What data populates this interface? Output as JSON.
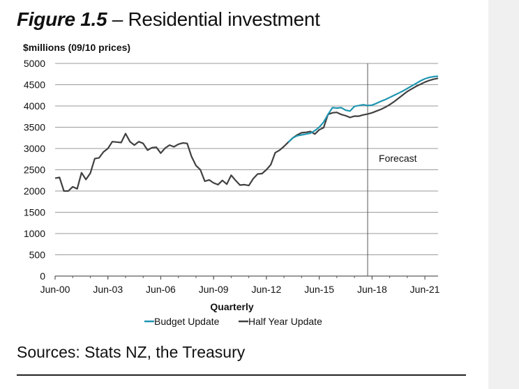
{
  "title": {
    "number": "Figure 1.5",
    "separator": " – ",
    "text": "Residential investment"
  },
  "sources": "Sources: Stats NZ, the Treasury",
  "chart_data": {
    "type": "line",
    "ylabel": "$millions (09/10 prices)",
    "xlabel": "Quarterly",
    "ylim": [
      0,
      5000
    ],
    "yticks": [
      "5000",
      "4500",
      "4000",
      "3500",
      "3000",
      "2500",
      "2000",
      "1500",
      "1000",
      "500",
      "0"
    ],
    "xlim": [
      2000.5,
      2022.25
    ],
    "xticks": [
      {
        "label": "Jun-00",
        "x": 2000.5
      },
      {
        "label": "Jun-03",
        "x": 2003.5
      },
      {
        "label": "Jun-06",
        "x": 2006.5
      },
      {
        "label": "Jun-09",
        "x": 2009.5
      },
      {
        "label": "Jun-12",
        "x": 2012.5
      },
      {
        "label": "Jun-15",
        "x": 2015.5
      },
      {
        "label": "Jun-18",
        "x": 2018.5
      },
      {
        "label": "Jun-21",
        "x": 2021.5
      }
    ],
    "grid": true,
    "legend_position": "bottom",
    "forecast": {
      "label": "Forecast",
      "x": 2018.25
    },
    "series": [
      {
        "name": "Half Year Update",
        "color": "#404040",
        "x": [
          2000.5,
          2000.75,
          2001.0,
          2001.25,
          2001.5,
          2001.75,
          2002.0,
          2002.25,
          2002.5,
          2002.75,
          2003.0,
          2003.25,
          2003.5,
          2003.75,
          2004.0,
          2004.25,
          2004.5,
          2004.75,
          2005.0,
          2005.25,
          2005.5,
          2005.75,
          2006.0,
          2006.25,
          2006.5,
          2006.75,
          2007.0,
          2007.25,
          2007.5,
          2007.75,
          2008.0,
          2008.25,
          2008.5,
          2008.75,
          2009.0,
          2009.25,
          2009.5,
          2009.75,
          2010.0,
          2010.25,
          2010.5,
          2010.75,
          2011.0,
          2011.25,
          2011.5,
          2011.75,
          2012.0,
          2012.25,
          2012.5,
          2012.75,
          2013.0,
          2013.25,
          2013.5,
          2013.75,
          2014.0,
          2014.25,
          2014.5,
          2014.75,
          2015.0,
          2015.25,
          2015.5,
          2015.75,
          2016.0,
          2016.25,
          2016.5,
          2016.75,
          2017.0,
          2017.25,
          2017.5,
          2017.75,
          2018.0,
          2018.25,
          2018.5,
          2018.75,
          2019.0,
          2019.25,
          2019.5,
          2019.75,
          2020.0,
          2020.25,
          2020.5,
          2020.75,
          2021.0,
          2021.25,
          2021.5,
          2021.75,
          2022.0,
          2022.25
        ],
        "values": [
          2300,
          2320,
          2000,
          2000,
          2100,
          2050,
          2430,
          2270,
          2420,
          2760,
          2780,
          2920,
          3000,
          3160,
          3150,
          3140,
          3350,
          3160,
          3080,
          3160,
          3120,
          2960,
          3020,
          3030,
          2890,
          3010,
          3080,
          3040,
          3100,
          3130,
          3120,
          2810,
          2600,
          2500,
          2230,
          2260,
          2190,
          2150,
          2250,
          2160,
          2370,
          2250,
          2140,
          2150,
          2130,
          2290,
          2400,
          2410,
          2500,
          2620,
          2900,
          2960,
          3050,
          3150,
          3250,
          3320,
          3370,
          3380,
          3400,
          3340,
          3440,
          3490,
          3800,
          3840,
          3850,
          3800,
          3770,
          3730,
          3760,
          3760,
          3790,
          3810,
          3840,
          3880,
          3920,
          3970,
          4030,
          4100,
          4180,
          4260,
          4340,
          4400,
          4460,
          4510,
          4560,
          4600,
          4630,
          4650
        ]
      },
      {
        "name": "Budget Update",
        "color": "#1f95b0",
        "x": [
          2013.75,
          2014.0,
          2014.25,
          2014.5,
          2014.75,
          2015.0,
          2015.25,
          2015.5,
          2015.75,
          2016.0,
          2016.25,
          2016.5,
          2016.75,
          2017.0,
          2017.25,
          2017.5,
          2017.75,
          2018.0,
          2018.25,
          2018.5,
          2018.75,
          2019.0,
          2019.25,
          2019.5,
          2019.75,
          2020.0,
          2020.25,
          2020.5,
          2020.75,
          2021.0,
          2021.25,
          2021.5,
          2021.75,
          2022.0,
          2022.25
        ],
        "values": [
          3150,
          3250,
          3300,
          3320,
          3340,
          3360,
          3420,
          3500,
          3620,
          3800,
          3960,
          3950,
          3960,
          3900,
          3880,
          3990,
          4010,
          4030,
          4010,
          4020,
          4060,
          4110,
          4150,
          4200,
          4250,
          4300,
          4350,
          4410,
          4470,
          4530,
          4590,
          4640,
          4670,
          4690,
          4700
        ]
      }
    ]
  }
}
